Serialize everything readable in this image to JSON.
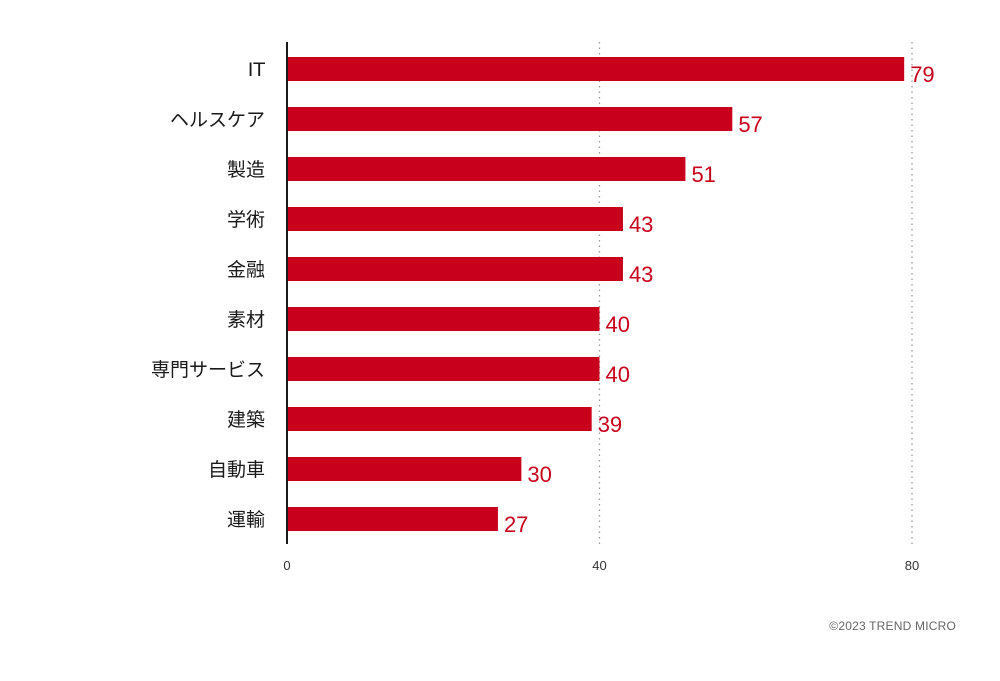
{
  "chart_data": {
    "type": "bar",
    "orientation": "horizontal",
    "categories": [
      "IT",
      "ヘルスケア",
      "製造",
      "学術",
      "金融",
      "素材",
      "専門サービス",
      "建築",
      "自動車",
      "運輸"
    ],
    "values": [
      79,
      57,
      51,
      43,
      43,
      40,
      40,
      39,
      30,
      27
    ],
    "xlim": [
      0,
      80
    ],
    "xticks": [
      0,
      40,
      80
    ],
    "xtick_labels": [
      "0",
      "40",
      "80"
    ],
    "grid": "vertical-dotted",
    "title": "",
    "xlabel": "",
    "ylabel": "",
    "bar_color": "#c8001c",
    "value_label_color": "#c8001c"
  },
  "footer": {
    "copyright": "©2023 TREND MICRO"
  }
}
